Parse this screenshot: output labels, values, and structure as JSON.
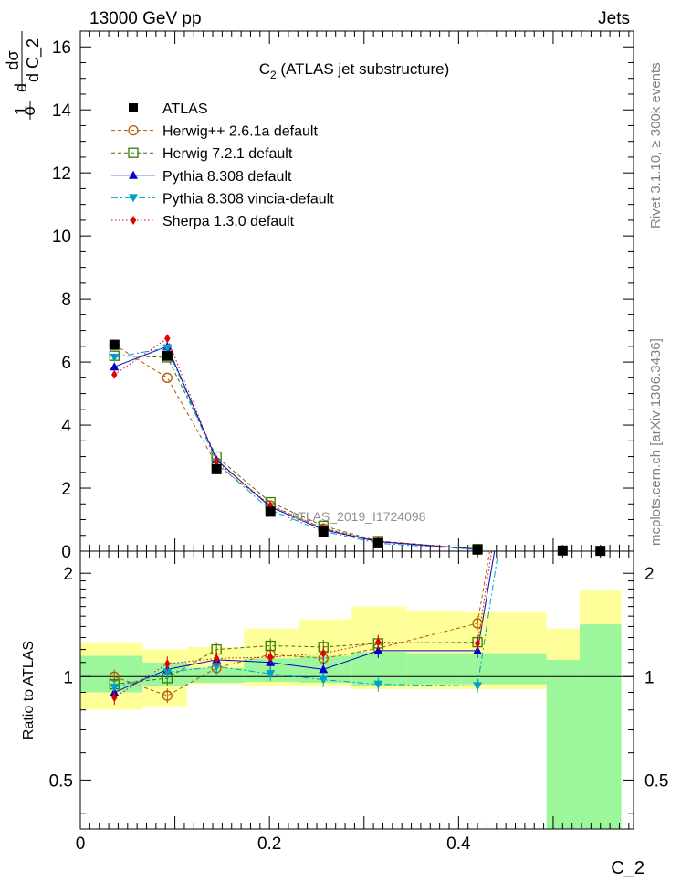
{
  "header": {
    "left": "13000 GeV pp",
    "right": "Jets"
  },
  "side_labels": {
    "rivet": "Rivet 3.1.10, ≥ 300k events",
    "mcplots": "mcplots.cern.ch [arXiv:1306.3436]"
  },
  "watermark": "ATLAS_2019_I1724098",
  "chart_data": [
    {
      "type": "scatter",
      "panel": "main",
      "title": "C₂ (ATLAS jet substructure)",
      "ylabel": "d1/σ dσ/d C_2",
      "ylabel_parts": {
        "a": "1",
        "b": "σ",
        "c": "d",
        "d": "dσ",
        "e": "d C_2"
      },
      "xlim": [
        0,
        0.585
      ],
      "ylim": [
        0,
        16.5
      ],
      "yticks": [
        0,
        2,
        4,
        6,
        8,
        10,
        12,
        14,
        16
      ],
      "ytick_labels": [
        "0",
        "2",
        "4",
        "6",
        "8",
        "10",
        "12",
        "14",
        "16"
      ],
      "x": [
        0.036,
        0.092,
        0.144,
        0.201,
        0.257,
        0.315,
        0.42,
        0.51,
        0.55
      ],
      "series": [
        {
          "name": "ATLAS",
          "color": "#000000",
          "marker": "square-filled",
          "line": "none",
          "values": [
            6.55,
            6.2,
            2.6,
            1.25,
            0.62,
            0.25,
            0.05,
            0.02,
            0.01
          ]
        },
        {
          "name": "Herwig++ 2.6.1a default",
          "color": "#b35a00",
          "marker": "circle-open",
          "line": "dashed",
          "values": [
            6.55,
            5.5,
            2.75,
            1.45,
            0.72,
            0.3,
            0.07
          ]
        },
        {
          "name": "Herwig 7.2.1 default",
          "color": "#3a7a00",
          "marker": "square-open",
          "line": "dashed",
          "values": [
            6.2,
            6.15,
            3.0,
            1.55,
            0.8,
            0.32,
            0.065
          ]
        },
        {
          "name": "Pythia 8.308 default",
          "color": "#0000cc",
          "marker": "triangle-up",
          "line": "solid",
          "values": [
            5.85,
            6.5,
            2.9,
            1.4,
            0.68,
            0.3,
            0.06
          ]
        },
        {
          "name": "Pythia 8.308 vincia-default",
          "color": "#00a0c8",
          "marker": "triangle-down",
          "line": "dashdot",
          "values": [
            6.15,
            6.45,
            2.8,
            1.3,
            0.63,
            0.25,
            0.05
          ]
        },
        {
          "name": "Sherpa 1.3.0 default",
          "color": "#e00000",
          "marker": "diamond",
          "line": "dotted",
          "values": [
            5.6,
            6.75,
            2.85,
            1.45,
            0.73,
            0.32,
            0.065
          ]
        }
      ]
    },
    {
      "type": "scatter",
      "panel": "ratio",
      "ylabel": "Ratio to ATLAS",
      "xlabel": "C_2",
      "xlim": [
        0,
        0.585
      ],
      "ylim": [
        0.36,
        2.32
      ],
      "yscale": "log",
      "yticks": [
        0.5,
        1,
        2
      ],
      "ytick_labels": [
        "0.5",
        "1",
        "2"
      ],
      "xticks": [
        0,
        0.2,
        0.4
      ],
      "xtick_labels": [
        "0",
        "0.2",
        "0.4"
      ],
      "x": [
        0.036,
        0.092,
        0.144,
        0.201,
        0.257,
        0.315,
        0.42
      ],
      "bands": {
        "edges": [
          0,
          0.066,
          0.113,
          0.173,
          0.231,
          0.287,
          0.345,
          0.402,
          0.493,
          0.528,
          0.572
        ],
        "stat": [
          [
            0.9,
            1.15
          ],
          [
            0.94,
            1.1
          ],
          [
            0.96,
            1.06
          ],
          [
            0.965,
            1.13
          ],
          [
            0.96,
            1.15
          ],
          [
            0.94,
            1.18
          ],
          [
            0.95,
            1.17
          ],
          [
            0.95,
            1.17
          ],
          [
            0.3,
            1.12
          ],
          [
            0.3,
            1.42
          ]
        ],
        "total": [
          [
            0.8,
            1.26
          ],
          [
            0.82,
            1.2
          ],
          [
            0.95,
            1.22
          ],
          [
            0.94,
            1.38
          ],
          [
            0.935,
            1.47
          ],
          [
            0.92,
            1.6
          ],
          [
            0.92,
            1.56
          ],
          [
            0.92,
            1.54
          ],
          [
            0.3,
            1.38
          ],
          [
            0.3,
            1.78
          ]
        ],
        "stat_color": "#9cf79c",
        "total_color": "#ffff99"
      },
      "series": [
        {
          "name": "Herwig++ 2.6.1a default",
          "values": [
            1.0,
            0.88,
            1.06,
            1.16,
            1.13,
            1.21,
            1.43
          ]
        },
        {
          "name": "Herwig 7.2.1 default",
          "values": [
            0.95,
            0.99,
            1.2,
            1.23,
            1.22,
            1.25,
            1.26
          ]
        },
        {
          "name": "Pythia 8.308 default",
          "values": [
            0.9,
            1.05,
            1.12,
            1.1,
            1.05,
            1.19,
            1.19
          ]
        },
        {
          "name": "Pythia 8.308 vincia-default",
          "values": [
            0.93,
            1.03,
            1.07,
            1.02,
            0.98,
            0.95,
            0.94
          ]
        },
        {
          "name": "Sherpa 1.3.0 default",
          "values": [
            0.87,
            1.09,
            1.13,
            1.14,
            1.17,
            1.26,
            1.25
          ]
        }
      ],
      "tails": [
        {
          "name": "Herwig++ 2.6.1a default",
          "from": [
            0.42,
            1.43
          ],
          "to": [
            0.433,
            2.32
          ]
        },
        {
          "name": "Sherpa 1.3.0 default",
          "from": [
            0.42,
            1.25
          ],
          "to": [
            0.435,
            2.32
          ]
        },
        {
          "name": "Pythia 8.308 default",
          "from": [
            0.42,
            1.19
          ],
          "to": [
            0.438,
            2.32
          ]
        },
        {
          "name": "Pythia 8.308 vincia-default",
          "from": [
            0.42,
            0.94
          ],
          "to": [
            0.442,
            2.32
          ]
        }
      ]
    }
  ]
}
